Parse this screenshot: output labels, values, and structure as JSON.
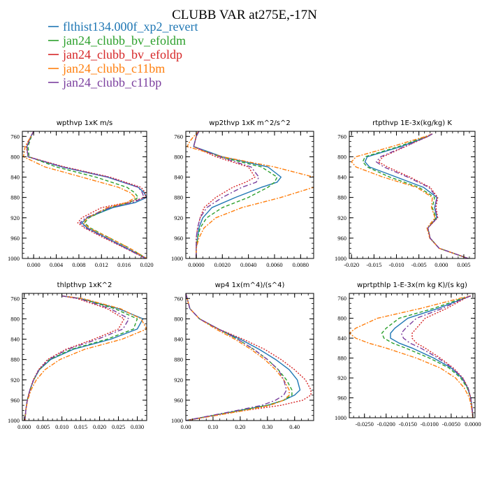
{
  "figure": {
    "title": "CLUBB VAR at275E,-17N"
  },
  "legend": [
    {
      "name": "flthist134.000f_xp2_revert",
      "color": "#1f77b4"
    },
    {
      "name": "jan24_clubb_bv_efoldm",
      "color": "#2ca02c"
    },
    {
      "name": "jan24_clubb_bv_efoldp",
      "color": "#d62728"
    },
    {
      "name": "jan24_clubb_c11bm",
      "color": "#ff7f0e"
    },
    {
      "name": "jan24_clubb_c11bp",
      "color": "#7b3f9e"
    }
  ],
  "chart_data": [
    {
      "type": "line",
      "title": "wpthvp  1xK m/s",
      "xlim": [
        -0.002,
        0.02
      ],
      "ylim": [
        1000,
        750
      ],
      "grid": false,
      "xticks": [
        0.0,
        0.004,
        0.008,
        0.012,
        0.016,
        0.02
      ],
      "xtick_labels": [
        "0.000",
        "0.004",
        "0.008",
        "0.012",
        "0.016",
        "0.020"
      ],
      "yticks": [
        760,
        800,
        840,
        880,
        920,
        960,
        1000
      ],
      "ytick_labels": [
        "760",
        "800",
        "840",
        "880",
        "920",
        "960",
        "1000"
      ],
      "levels": [
        750,
        760,
        780,
        800,
        820,
        840,
        860,
        870,
        880,
        890,
        900,
        920,
        930,
        940,
        960,
        980,
        1000
      ],
      "series": [
        {
          "name": "flthist134.000f_xp2_revert",
          "values": [
            0.0,
            -0.0005,
            -0.0012,
            -0.001,
            0.005,
            0.013,
            0.0185,
            0.0195,
            0.02,
            0.018,
            0.014,
            0.0095,
            0.0085,
            0.0095,
            0.013,
            0.0165,
            0.02
          ]
        },
        {
          "name": "jan24_clubb_bv_efoldm",
          "values": [
            0.0,
            -0.0004,
            -0.001,
            -0.0008,
            0.004,
            0.011,
            0.0165,
            0.0178,
            0.0185,
            0.017,
            0.0135,
            0.0098,
            0.009,
            0.01,
            0.0135,
            0.017,
            0.02
          ]
        },
        {
          "name": "jan24_clubb_bv_efoldp",
          "values": [
            0.0,
            -0.0005,
            -0.0013,
            -0.001,
            0.0055,
            0.0135,
            0.019,
            0.0197,
            0.0198,
            0.0165,
            0.012,
            0.0085,
            0.0078,
            0.009,
            0.0125,
            0.0162,
            0.0198
          ]
        },
        {
          "name": "jan24_clubb_c11bm",
          "values": [
            0.0,
            -0.0005,
            -0.0015,
            -0.0018,
            0.002,
            0.0085,
            0.015,
            0.017,
            0.018,
            0.0165,
            0.013,
            0.0095,
            0.0088,
            0.0098,
            0.0135,
            0.017,
            0.02
          ]
        },
        {
          "name": "jan24_clubb_c11bp",
          "values": [
            0.0,
            -0.0005,
            -0.0012,
            -0.001,
            0.0052,
            0.0132,
            0.0185,
            0.0192,
            0.0195,
            0.0175,
            0.0135,
            0.0092,
            0.0082,
            0.0092,
            0.0128,
            0.0163,
            0.0198
          ]
        }
      ]
    },
    {
      "type": "line",
      "title": "wp2thvp  1xK m^2/s^2",
      "xlim": [
        -0.0008,
        0.009
      ],
      "ylim": [
        1000,
        750
      ],
      "grid": false,
      "xticks": [
        0.0,
        0.002,
        0.004,
        0.006,
        0.008
      ],
      "xtick_labels": [
        "0.0000",
        "0.0020",
        "0.0040",
        "0.0060",
        "0.0080"
      ],
      "yticks": [
        760,
        800,
        840,
        880,
        920,
        960,
        1000
      ],
      "ytick_labels": [
        "760",
        "800",
        "840",
        "880",
        "920",
        "960",
        "1000"
      ],
      "levels": [
        750,
        760,
        770,
        780,
        800,
        820,
        840,
        850,
        860,
        880,
        900,
        920,
        940,
        960,
        980,
        1000
      ],
      "series": [
        {
          "name": "flthist134.000f_xp2_revert",
          "values": [
            0.0002,
            0.0,
            -0.0001,
            -0.0002,
            0.002,
            0.0055,
            0.0065,
            0.0062,
            0.005,
            0.003,
            0.0012,
            0.0005,
            0.0002,
            0.0001,
            0.0,
            0.0
          ]
        },
        {
          "name": "jan24_clubb_bv_efoldm",
          "values": [
            0.0002,
            0.0,
            -0.0001,
            -0.0002,
            0.0018,
            0.005,
            0.0062,
            0.006,
            0.0055,
            0.004,
            0.002,
            0.0008,
            0.0003,
            0.0001,
            0.0,
            0.0
          ]
        },
        {
          "name": "jan24_clubb_bv_efoldp",
          "values": [
            0.0002,
            0.0,
            -0.0001,
            -0.0002,
            0.0015,
            0.004,
            0.0045,
            0.0038,
            0.0028,
            0.0015,
            0.0006,
            0.0003,
            0.0001,
            0.0,
            0.0,
            0.0
          ]
        },
        {
          "name": "jan24_clubb_c11bm",
          "values": [
            0.0002,
            -0.0002,
            -0.0005,
            -0.0007,
            0.002,
            0.006,
            0.009,
            0.0092,
            0.009,
            0.0065,
            0.0035,
            0.0015,
            0.0006,
            0.0002,
            0.0,
            0.0
          ]
        },
        {
          "name": "jan24_clubb_c11bp",
          "values": [
            0.0002,
            0.0,
            -0.0001,
            -0.0002,
            0.0018,
            0.0042,
            0.0048,
            0.0046,
            0.0035,
            0.002,
            0.0008,
            0.0003,
            0.0001,
            0.0,
            0.0,
            0.0
          ]
        }
      ]
    },
    {
      "type": "line",
      "title": "rtpthvp  1E-3x(kg/kg) K",
      "xlim": [
        -0.0205,
        0.0075
      ],
      "ylim": [
        1000,
        750
      ],
      "grid": false,
      "xticks": [
        -0.02,
        -0.015,
        -0.01,
        -0.005,
        0.0,
        0.005
      ],
      "xtick_labels": [
        "-0.020",
        "-0.015",
        "-0.010",
        "-0.005",
        "0.000",
        "0.005"
      ],
      "yticks": [
        760,
        800,
        840,
        880,
        920,
        960,
        1000
      ],
      "ytick_labels": [
        "760",
        "800",
        "840",
        "880",
        "920",
        "960",
        "1000"
      ],
      "levels": [
        755,
        760,
        780,
        800,
        810,
        820,
        840,
        860,
        880,
        900,
        920,
        940,
        960,
        980,
        1000
      ],
      "series": [
        {
          "name": "flthist134.000f_xp2_revert",
          "values": [
            -0.002,
            -0.003,
            -0.009,
            -0.0165,
            -0.017,
            -0.016,
            -0.01,
            -0.004,
            -0.001,
            -0.0015,
            -0.001,
            -0.003,
            -0.0025,
            -0.0005,
            0.006
          ]
        },
        {
          "name": "jan24_clubb_bv_efoldm",
          "values": [
            -0.002,
            -0.0032,
            -0.0095,
            -0.017,
            -0.0175,
            -0.0165,
            -0.0115,
            -0.005,
            -0.0015,
            -0.002,
            -0.0012,
            -0.003,
            -0.0025,
            -0.0005,
            0.006
          ]
        },
        {
          "name": "jan24_clubb_bv_efoldp",
          "values": [
            -0.002,
            -0.003,
            -0.008,
            -0.013,
            -0.014,
            -0.012,
            -0.007,
            -0.0025,
            -0.0008,
            -0.0012,
            -0.0008,
            -0.003,
            -0.0025,
            -0.0005,
            0.006
          ]
        },
        {
          "name": "jan24_clubb_c11bm",
          "values": [
            -0.002,
            -0.0035,
            -0.011,
            -0.019,
            -0.02,
            -0.019,
            -0.013,
            -0.0055,
            -0.002,
            -0.0022,
            -0.0014,
            -0.0032,
            -0.0026,
            -0.0005,
            0.006
          ]
        },
        {
          "name": "jan24_clubb_c11bp",
          "values": [
            -0.002,
            -0.003,
            -0.0082,
            -0.0135,
            -0.0145,
            -0.0128,
            -0.0075,
            -0.0028,
            -0.001,
            -0.0014,
            -0.0009,
            -0.003,
            -0.0025,
            -0.0005,
            0.006
          ]
        }
      ]
    },
    {
      "type": "line",
      "title": "thlpthvp  1xK^2",
      "xlim": [
        -0.0005,
        0.0325
      ],
      "ylim": [
        1000,
        750
      ],
      "grid": false,
      "xticks": [
        0.0,
        0.005,
        0.01,
        0.015,
        0.02,
        0.025,
        0.03
      ],
      "xtick_labels": [
        "0.000",
        "0.005",
        "0.010",
        "0.015",
        "0.020",
        "0.025",
        "0.030"
      ],
      "yticks": [
        760,
        800,
        840,
        880,
        920,
        960,
        1000
      ],
      "ytick_labels": [
        "760",
        "800",
        "840",
        "880",
        "920",
        "960",
        "1000"
      ],
      "levels": [
        755,
        760,
        780,
        800,
        820,
        840,
        860,
        880,
        900,
        920,
        940,
        960,
        980,
        1000
      ],
      "series": [
        {
          "name": "flthist134.000f_xp2_revert",
          "values": [
            0.01,
            0.015,
            0.025,
            0.0315,
            0.03,
            0.023,
            0.013,
            0.007,
            0.004,
            0.0025,
            0.0015,
            0.0008,
            0.0004,
            0.0002
          ]
        },
        {
          "name": "jan24_clubb_bv_efoldm",
          "values": [
            0.01,
            0.015,
            0.024,
            0.03,
            0.029,
            0.022,
            0.0125,
            0.0068,
            0.004,
            0.0025,
            0.0015,
            0.0008,
            0.0004,
            0.0002
          ]
        },
        {
          "name": "jan24_clubb_bv_efoldp",
          "values": [
            0.01,
            0.014,
            0.022,
            0.0265,
            0.025,
            0.0185,
            0.011,
            0.0062,
            0.0038,
            0.0024,
            0.0015,
            0.0008,
            0.0004,
            0.0002
          ]
        },
        {
          "name": "jan24_clubb_c11bm",
          "values": [
            0.01,
            0.0155,
            0.0255,
            0.031,
            0.0325,
            0.026,
            0.016,
            0.0095,
            0.0055,
            0.0032,
            0.0018,
            0.0009,
            0.0004,
            0.0002
          ]
        },
        {
          "name": "jan24_clubb_c11bp",
          "values": [
            0.01,
            0.0145,
            0.0228,
            0.0278,
            0.0262,
            0.0195,
            0.0115,
            0.0065,
            0.0039,
            0.0025,
            0.0015,
            0.0008,
            0.0004,
            0.0002
          ]
        }
      ]
    },
    {
      "type": "line",
      "title": "wp4  1x(m^4)/(s^4)",
      "xlim": [
        0.0,
        0.47
      ],
      "ylim": [
        1000,
        750
      ],
      "grid": false,
      "xticks": [
        0.0,
        0.1,
        0.2,
        0.3,
        0.4
      ],
      "xtick_labels": [
        "0.00",
        "0.10",
        "0.20",
        "0.30",
        "0.40"
      ],
      "yticks": [
        760,
        800,
        840,
        880,
        920,
        960,
        1000
      ],
      "ytick_labels": [
        "760",
        "800",
        "840",
        "880",
        "920",
        "960",
        "1000"
      ],
      "levels": [
        750,
        760,
        780,
        800,
        820,
        840,
        860,
        880,
        900,
        920,
        940,
        950,
        960,
        970,
        980,
        1000
      ],
      "series": [
        {
          "name": "flthist134.000f_xp2_revert",
          "values": [
            0.0,
            0.005,
            0.015,
            0.05,
            0.12,
            0.2,
            0.27,
            0.33,
            0.38,
            0.41,
            0.42,
            0.4,
            0.36,
            0.3,
            0.2,
            0.0
          ]
        },
        {
          "name": "jan24_clubb_bv_efoldm",
          "values": [
            0.0,
            0.005,
            0.015,
            0.05,
            0.12,
            0.19,
            0.25,
            0.3,
            0.34,
            0.37,
            0.39,
            0.39,
            0.36,
            0.3,
            0.2,
            0.0
          ]
        },
        {
          "name": "jan24_clubb_bv_efoldp",
          "values": [
            0.0,
            0.005,
            0.015,
            0.05,
            0.12,
            0.21,
            0.29,
            0.35,
            0.4,
            0.44,
            0.46,
            0.46,
            0.43,
            0.35,
            0.22,
            0.0
          ]
        },
        {
          "name": "jan24_clubb_c11bm",
          "values": [
            0.0,
            0.005,
            0.015,
            0.05,
            0.11,
            0.18,
            0.24,
            0.29,
            0.33,
            0.36,
            0.38,
            0.38,
            0.36,
            0.31,
            0.22,
            0.0
          ]
        },
        {
          "name": "jan24_clubb_c11bp",
          "values": [
            0.0,
            0.005,
            0.015,
            0.05,
            0.12,
            0.19,
            0.25,
            0.3,
            0.34,
            0.36,
            0.37,
            0.36,
            0.33,
            0.28,
            0.19,
            0.0
          ]
        }
      ]
    },
    {
      "type": "line",
      "title": "wprtpthlp  1-E-3x(m kg K)/(s kg)",
      "xlim": [
        -0.0285,
        0.0005
      ],
      "ylim": [
        1000,
        750
      ],
      "grid": false,
      "xticks": [
        -0.025,
        -0.02,
        -0.015,
        -0.01,
        -0.005,
        0.0
      ],
      "xtick_labels": [
        "-0.0250",
        "-0.0200",
        "-0.0150",
        "-0.0100",
        "-0.0050",
        "0.0000"
      ],
      "yticks": [
        760,
        800,
        840,
        880,
        920,
        960,
        1000
      ],
      "ytick_labels": [
        "760",
        "800",
        "840",
        "880",
        "920",
        "960",
        "1000"
      ],
      "levels": [
        755,
        760,
        780,
        800,
        820,
        830,
        840,
        850,
        860,
        880,
        900,
        920,
        940,
        960,
        980,
        1000
      ],
      "series": [
        {
          "name": "flthist134.000f_xp2_revert",
          "values": [
            -0.0005,
            -0.002,
            -0.008,
            -0.015,
            -0.018,
            -0.019,
            -0.019,
            -0.017,
            -0.014,
            -0.009,
            -0.005,
            -0.0025,
            -0.0012,
            -0.0005,
            -0.0002,
            0.0
          ]
        },
        {
          "name": "jan24_clubb_bv_efoldm",
          "values": [
            -0.0005,
            -0.0025,
            -0.009,
            -0.017,
            -0.02,
            -0.021,
            -0.0205,
            -0.0185,
            -0.0155,
            -0.01,
            -0.0055,
            -0.0028,
            -0.0013,
            -0.0005,
            -0.0002,
            0.0
          ]
        },
        {
          "name": "jan24_clubb_bv_efoldp",
          "values": [
            -0.0005,
            -0.0018,
            -0.006,
            -0.011,
            -0.013,
            -0.014,
            -0.014,
            -0.013,
            -0.011,
            -0.0075,
            -0.0045,
            -0.0023,
            -0.0011,
            -0.0005,
            -0.0002,
            0.0
          ]
        },
        {
          "name": "jan24_clubb_c11bm",
          "values": [
            -0.0005,
            -0.003,
            -0.012,
            -0.022,
            -0.027,
            -0.0285,
            -0.027,
            -0.024,
            -0.02,
            -0.013,
            -0.0075,
            -0.004,
            -0.002,
            -0.0008,
            -0.0003,
            0.0
          ]
        },
        {
          "name": "jan24_clubb_c11bp",
          "values": [
            -0.0005,
            -0.002,
            -0.007,
            -0.013,
            -0.0155,
            -0.0165,
            -0.016,
            -0.0145,
            -0.012,
            -0.008,
            -0.0047,
            -0.0024,
            -0.0011,
            -0.0005,
            -0.0002,
            0.0
          ]
        }
      ]
    }
  ]
}
